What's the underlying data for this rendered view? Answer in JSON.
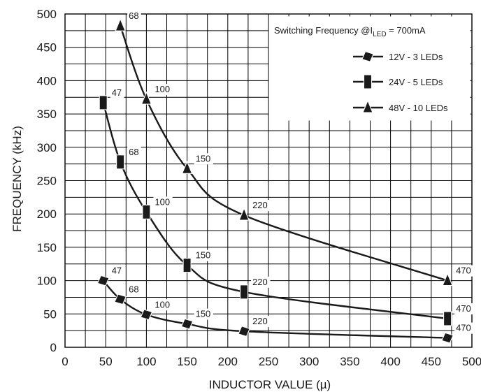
{
  "chart_data": {
    "type": "line",
    "title": "",
    "xlabel": "INDUCTOR VALUE (µ)",
    "ylabel": "FREQUENCY (kHz)",
    "xlim": [
      0,
      500
    ],
    "ylim": [
      0,
      500
    ],
    "xticks": [
      0,
      50,
      100,
      150,
      200,
      250,
      300,
      350,
      400,
      450,
      500
    ],
    "yticks": [
      0,
      50,
      100,
      150,
      200,
      250,
      300,
      350,
      400,
      450,
      500
    ],
    "grid": true,
    "legend": {
      "placement": "top-right",
      "title_prefix": "Switching Frequency @I",
      "title_sub": "LED",
      "title_suffix": " = 700mA"
    },
    "series": [
      {
        "name": "12V - 3 LEDs",
        "marker": "diamond",
        "x": [
          47,
          68,
          100,
          150,
          220,
          470
        ],
        "y": [
          100,
          72,
          49,
          35,
          24,
          14
        ],
        "labels": [
          "47",
          "68",
          "100",
          "150",
          "220",
          "470"
        ]
      },
      {
        "name": "24V - 5 LEDs",
        "marker": "square",
        "x": [
          47,
          68,
          100,
          150,
          220,
          470
        ],
        "y": [
          367,
          278,
          203,
          123,
          83,
          43
        ],
        "labels": [
          "47",
          "68",
          "100",
          "150",
          "220",
          "470"
        ]
      },
      {
        "name": "48V - 10 LEDs",
        "marker": "triangle",
        "x": [
          68,
          100,
          150,
          220,
          470
        ],
        "y": [
          482,
          372,
          268,
          198,
          100
        ],
        "labels": [
          "68",
          "100",
          "150",
          "220",
          "470"
        ]
      }
    ]
  }
}
